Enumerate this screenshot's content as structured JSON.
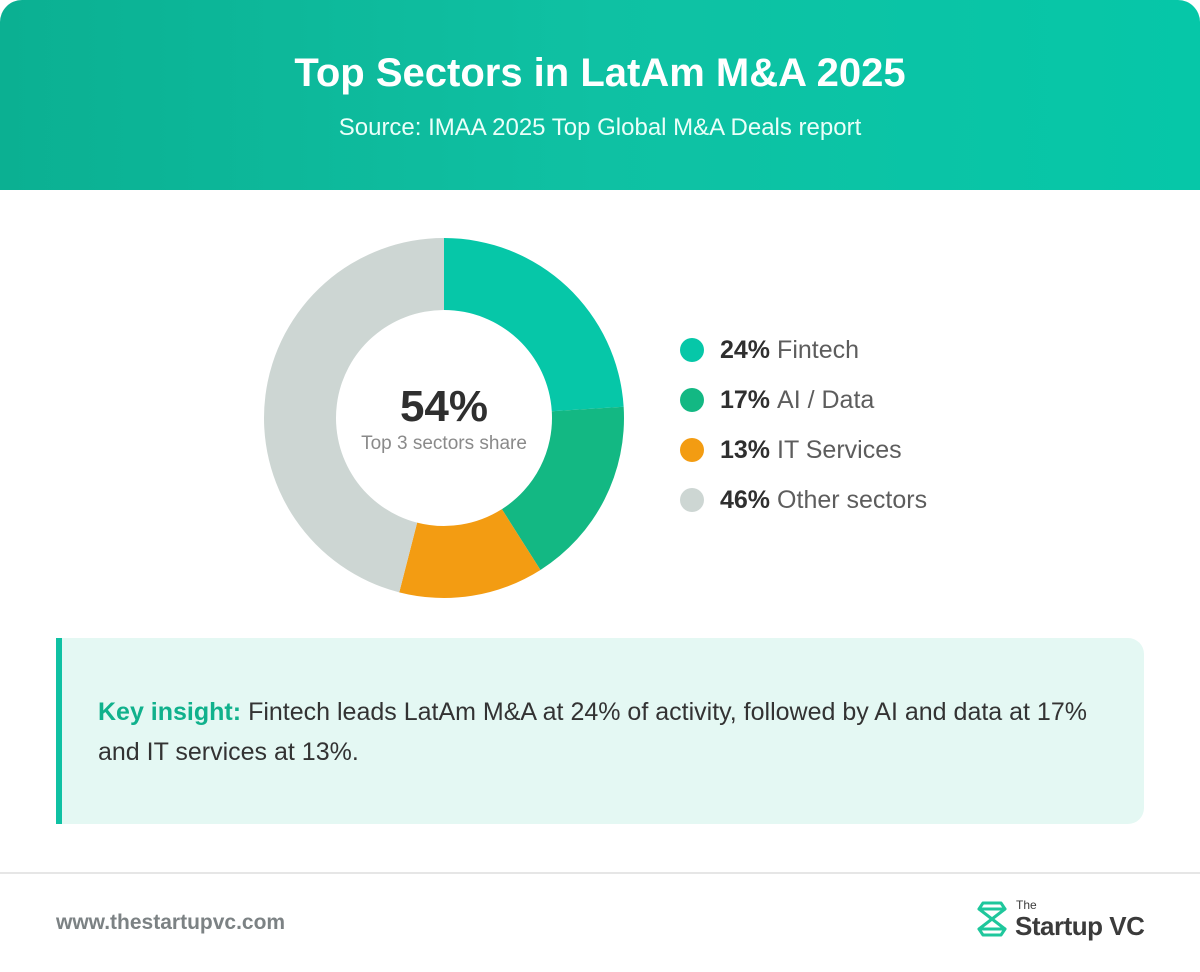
{
  "header": {
    "title": "Top Sectors in LatAm M&A 2025",
    "subtitle": "Source: IMAA 2025 Top Global M&A Deals report"
  },
  "chart_data": {
    "type": "pie",
    "title": "Top Sectors in LatAm M&A 2025",
    "center_value": "54%",
    "center_label": "Top 3 sectors share",
    "slices": [
      {
        "pct_label": "24%",
        "label": "Fintech",
        "value": 24,
        "color": "#06c7a8"
      },
      {
        "pct_label": "17%",
        "label": "AI / Data",
        "value": 17,
        "color": "#13b883"
      },
      {
        "pct_label": "13%",
        "label": "IT Services",
        "value": 13,
        "color": "#f39c12"
      },
      {
        "pct_label": "46%",
        "label": "Other sectors",
        "value": 46,
        "color": "#cdd6d3"
      }
    ]
  },
  "insight": {
    "label": "Key insight:",
    "text": "Fintech leads LatAm M&A at 24% of activity, followed by AI and data at 17% and IT services at 13%."
  },
  "footer": {
    "url": "www.thestartupvc.com",
    "logo_small": "The",
    "logo_main": "Startup VC",
    "logo_icon": "startupvc-logo-icon"
  },
  "colors": {
    "brand_teal": "#0fc1a3",
    "insight_bg": "#e4f8f3",
    "insight_label": "#10b18c"
  }
}
